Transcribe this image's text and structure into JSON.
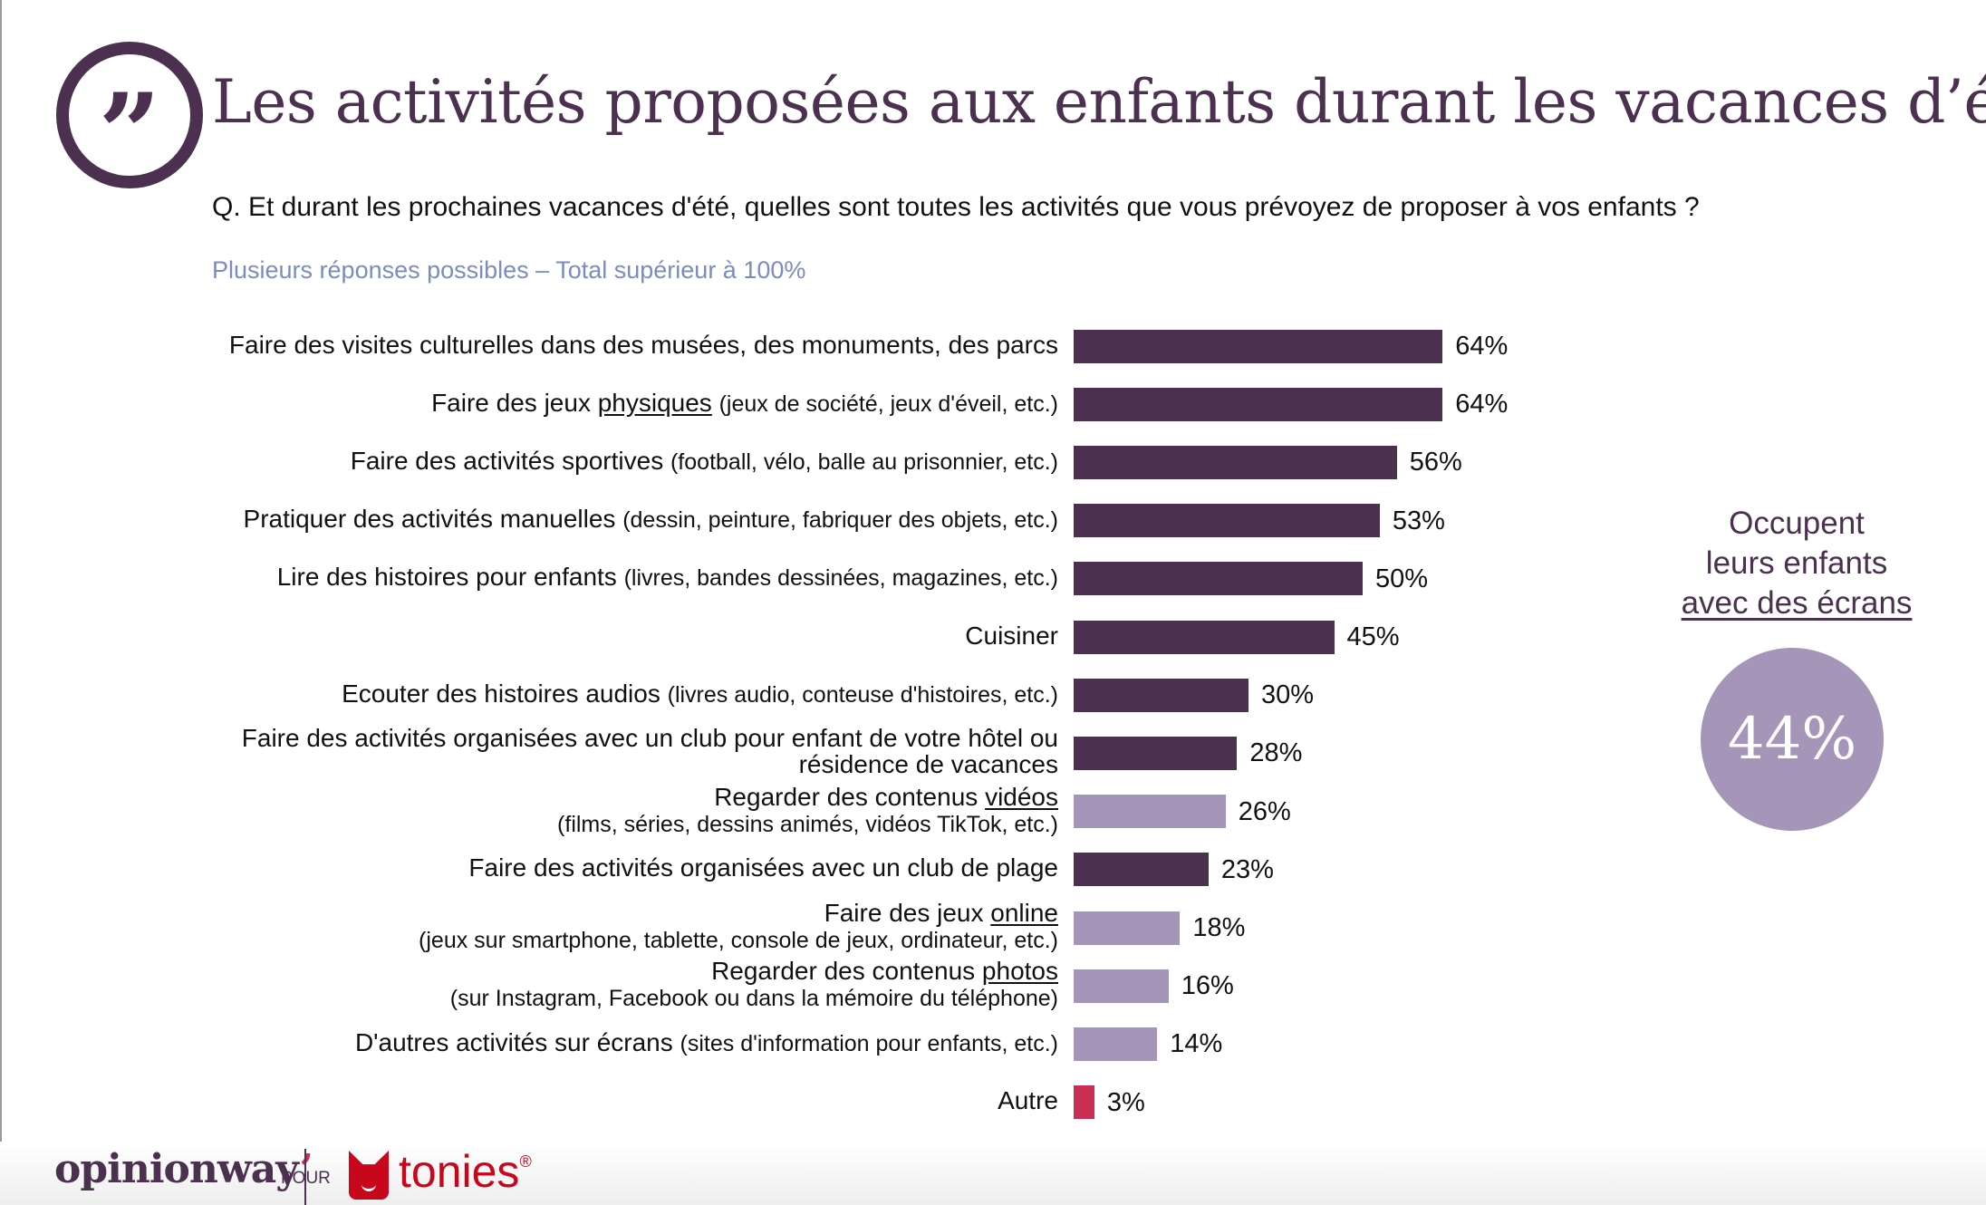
{
  "header": {
    "quote_icon": "quote-icon",
    "title": "Les activités proposées aux enfants durant les vacances d’été",
    "question": "Q. Et durant les prochaines vacances d'été, quelles sont toutes les activités que vous prévoyez de proposer à vos enfants ?",
    "note": "Plusieurs réponses possibles – Total supérieur à 100%"
  },
  "colors": {
    "primary": "#4b3050",
    "screen": "#a595b8",
    "other": "#c92f55",
    "note": "#7b8cbf"
  },
  "chart_data": {
    "type": "bar",
    "orientation": "horizontal",
    "title": "Les activités proposées aux enfants durant les vacances d’été",
    "xlabel": "",
    "ylabel": "",
    "unit": "%",
    "xlim": [
      0,
      100
    ],
    "grid": false,
    "categories": [
      {
        "main": "Faire des visites culturelles dans des musées, des monuments, des parcs",
        "underline": "",
        "after": "",
        "sub": "",
        "sub_newline": false
      },
      {
        "main": "Faire des jeux ",
        "underline": "physiques",
        "after": " ",
        "sub": "(jeux de société, jeux d'éveil, etc.)",
        "sub_newline": false
      },
      {
        "main": "Faire des activités sportives ",
        "underline": "",
        "after": "",
        "sub": "(football, vélo, balle au prisonnier, etc.)",
        "sub_newline": false
      },
      {
        "main": "Pratiquer des activités manuelles ",
        "underline": "",
        "after": "",
        "sub": "(dessin, peinture, fabriquer des objets, etc.)",
        "sub_newline": false
      },
      {
        "main": "Lire des histoires pour enfants ",
        "underline": "",
        "after": "",
        "sub": "(livres, bandes dessinées, magazines, etc.)",
        "sub_newline": false
      },
      {
        "main": "Cuisiner",
        "underline": "",
        "after": "",
        "sub": "",
        "sub_newline": false
      },
      {
        "main": "Ecouter des histoires audios ",
        "underline": "",
        "after": "",
        "sub": "(livres audio, conteuse d'histoires, etc.)",
        "sub_newline": false
      },
      {
        "main": "Faire des activités organisées avec un club pour enfant de votre hôtel ou",
        "underline": "",
        "after": "",
        "sub": "résidence de vacances",
        "sub_newline": true,
        "sub_large": true
      },
      {
        "main": "Regarder des contenus ",
        "underline": "vidéos",
        "after": "",
        "sub": "(films, séries, dessins animés, vidéos TikTok, etc.)",
        "sub_newline": true
      },
      {
        "main": "Faire des activités organisées avec un club de plage",
        "underline": "",
        "after": "",
        "sub": "",
        "sub_newline": false
      },
      {
        "main": "Faire des jeux ",
        "underline": "online",
        "after": "",
        "sub": "(jeux sur smartphone, tablette, console de jeux, ordinateur, etc.)",
        "sub_newline": true
      },
      {
        "main": "Regarder des contenus ",
        "underline": "photos",
        "after": "",
        "sub": "(sur Instagram, Facebook ou dans la mémoire du téléphone)",
        "sub_newline": true
      },
      {
        "main": "D'autres activités sur écrans ",
        "underline": "",
        "after": "",
        "sub": "(sites d'information pour enfants, etc.)",
        "sub_newline": false
      },
      {
        "main": "Autre",
        "underline": "",
        "after": "",
        "sub": "",
        "sub_newline": false
      }
    ],
    "values": [
      64,
      64,
      56,
      53,
      50,
      45,
      30,
      28,
      26,
      23,
      18,
      16,
      14,
      3
    ],
    "value_labels": [
      "64%",
      "64%",
      "56%",
      "53%",
      "50%",
      "45%",
      "30%",
      "28%",
      "26%",
      "23%",
      "18%",
      "16%",
      "14%",
      "3%"
    ],
    "groups": [
      "primary",
      "primary",
      "primary",
      "primary",
      "primary",
      "primary",
      "primary",
      "primary",
      "screen",
      "primary",
      "screen",
      "screen",
      "screen",
      "other"
    ]
  },
  "callout": {
    "line1": "Occupent",
    "line2": "leurs enfants",
    "line3": "avec des écrans",
    "value": "44%"
  },
  "footer": {
    "brand1": "opinionway",
    "brand1_mark": "’",
    "connector": "POUR",
    "brand2": "tonies",
    "brand2_mark": "®",
    "brand2_icon": "tonies-cat-icon"
  }
}
